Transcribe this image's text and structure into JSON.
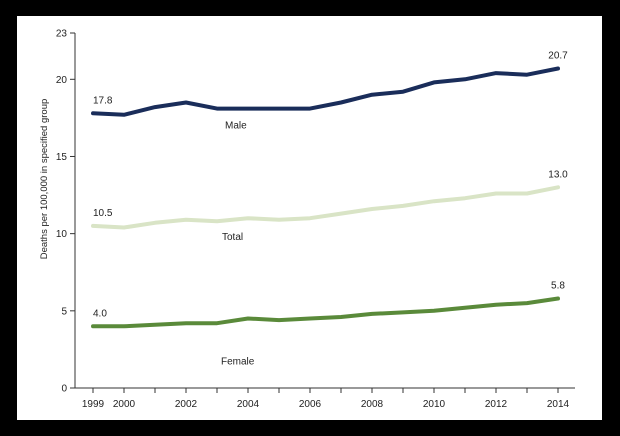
{
  "chart_data": {
    "type": "line",
    "title": "",
    "xlabel": "",
    "ylabel": "Deaths per 100,000 in specified group",
    "ylim": [
      0,
      23
    ],
    "yticks": [
      0,
      5,
      10,
      15,
      20,
      23
    ],
    "xlim": [
      1999,
      2014
    ],
    "xticks": [
      1999,
      2000,
      2002,
      2004,
      2006,
      2008,
      2010,
      2012,
      2014
    ],
    "x": [
      1999,
      2000,
      2001,
      2002,
      2003,
      2004,
      2005,
      2006,
      2007,
      2008,
      2009,
      2010,
      2011,
      2012,
      2013,
      2014
    ],
    "series": [
      {
        "name": "Male",
        "color": "#1a2d5a",
        "values": [
          17.8,
          17.7,
          18.2,
          18.5,
          18.1,
          18.1,
          18.1,
          18.1,
          18.5,
          19.0,
          19.2,
          19.8,
          20.0,
          20.4,
          20.3,
          20.7
        ],
        "start_label": "17.8",
        "end_label": "20.7"
      },
      {
        "name": "Total",
        "color": "#d9e4c6",
        "values": [
          10.5,
          10.4,
          10.7,
          10.9,
          10.8,
          11.0,
          10.9,
          11.0,
          11.3,
          11.6,
          11.8,
          12.1,
          12.3,
          12.6,
          12.6,
          13.0
        ],
        "start_label": "10.5",
        "end_label": "13.0"
      },
      {
        "name": "Female",
        "color": "#5a8a3a",
        "values": [
          4.0,
          4.0,
          4.1,
          4.2,
          4.2,
          4.5,
          4.4,
          4.5,
          4.6,
          4.8,
          4.9,
          5.0,
          5.2,
          5.4,
          5.5,
          5.8
        ],
        "start_label": "4.0",
        "end_label": "5.8"
      }
    ]
  }
}
